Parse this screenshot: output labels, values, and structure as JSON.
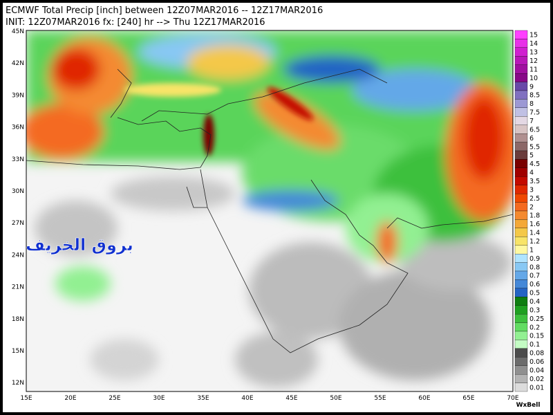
{
  "header": {
    "line1": "ECMWF Total Precip [inch] between 12Z07MAR2016 -- 12Z17MAR2016",
    "line2": "INIT: 12Z07MAR2016 fx: [240] hr --> Thu 12Z17MAR2016"
  },
  "lat_labels": [
    "45N",
    "42N",
    "39N",
    "36N",
    "33N",
    "30N",
    "27N",
    "24N",
    "21N",
    "18N",
    "15N",
    "12N"
  ],
  "lon_labels": [
    "15E",
    "20E",
    "25E",
    "30E",
    "35E",
    "40E",
    "45E",
    "50E",
    "55E",
    "60E",
    "65E",
    "70E"
  ],
  "colorbar": [
    {
      "label": "15",
      "color": "#ff40ff"
    },
    {
      "label": "14",
      "color": "#e830e8"
    },
    {
      "label": "13",
      "color": "#d020d0"
    },
    {
      "label": "12",
      "color": "#b818b8"
    },
    {
      "label": "11",
      "color": "#a010a0"
    },
    {
      "label": "10",
      "color": "#880888"
    },
    {
      "label": "9",
      "color": "#6848a8"
    },
    {
      "label": "8.5",
      "color": "#8070c0"
    },
    {
      "label": "8",
      "color": "#9c98d4"
    },
    {
      "label": "7.5",
      "color": "#c0c0e4"
    },
    {
      "label": "7",
      "color": "#e4d8e4"
    },
    {
      "label": "6.5",
      "color": "#d8c4c4"
    },
    {
      "label": "6",
      "color": "#b09090"
    },
    {
      "label": "5.5",
      "color": "#8c6868"
    },
    {
      "label": "5",
      "color": "#6a3c3c"
    },
    {
      "label": "4.5",
      "color": "#7a0000"
    },
    {
      "label": "4",
      "color": "#a00000"
    },
    {
      "label": "3.5",
      "color": "#c40a00"
    },
    {
      "label": "3",
      "color": "#e02800"
    },
    {
      "label": "2.5",
      "color": "#f04800"
    },
    {
      "label": "2",
      "color": "#f46a20"
    },
    {
      "label": "1.8",
      "color": "#f48a30"
    },
    {
      "label": "1.6",
      "color": "#f4a838"
    },
    {
      "label": "1.4",
      "color": "#f4c848"
    },
    {
      "label": "1.2",
      "color": "#f8e468"
    },
    {
      "label": "1",
      "color": "#fff8a0"
    },
    {
      "label": "0.9",
      "color": "#b0e4ff"
    },
    {
      "label": "0.8",
      "color": "#88c8f4"
    },
    {
      "label": "0.7",
      "color": "#64a8e8"
    },
    {
      "label": "0.6",
      "color": "#4488d8"
    },
    {
      "label": "0.5",
      "color": "#2464c4"
    },
    {
      "label": "0.4",
      "color": "#0e7e10"
    },
    {
      "label": "0.3",
      "color": "#1ea020"
    },
    {
      "label": "0.25",
      "color": "#3cc03c"
    },
    {
      "label": "0.2",
      "color": "#62dc62"
    },
    {
      "label": "0.15",
      "color": "#92f092"
    },
    {
      "label": "0.1",
      "color": "#c4fcc4"
    },
    {
      "label": "0.08",
      "color": "#4c4c4c"
    },
    {
      "label": "0.06",
      "color": "#6c6c6c"
    },
    {
      "label": "0.04",
      "color": "#909090"
    },
    {
      "label": "0.02",
      "color": "#b4b4b4"
    },
    {
      "label": "0.01",
      "color": "#dcdcdc"
    }
  ],
  "watermark": "بروق الخريف",
  "credit": "WxBell"
}
